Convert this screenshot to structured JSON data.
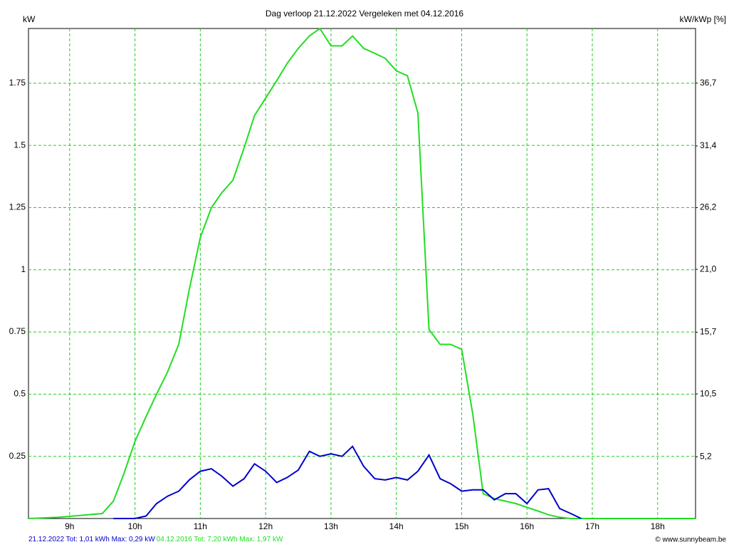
{
  "chart_data": {
    "type": "line",
    "title": "Dag  verloop 21.12.2022   Vergeleken met 04.12.2016",
    "y_label": "kW",
    "y2_label": "kW/kWp [%]",
    "credit": "© www.sunnybeam.be",
    "grid": true,
    "grid_color": "#22cc22",
    "xlim": [
      8.37,
      18.58
    ],
    "xticks": [
      {
        "value": 9,
        "label": "9h"
      },
      {
        "value": 10,
        "label": "10h"
      },
      {
        "value": 11,
        "label": "11h"
      },
      {
        "value": 12,
        "label": "12h"
      },
      {
        "value": 13,
        "label": "13h"
      },
      {
        "value": 14,
        "label": "14h"
      },
      {
        "value": 15,
        "label": "15h"
      },
      {
        "value": 16,
        "label": "16h"
      },
      {
        "value": 17,
        "label": "17h"
      },
      {
        "value": 18,
        "label": "18h"
      }
    ],
    "ylim": [
      0,
      1.97
    ],
    "yticks": [
      0.25,
      0.5,
      0.75,
      1,
      1.25,
      1.5,
      1.75
    ],
    "y2lim": [
      0,
      41.3
    ],
    "y2ticks": [
      {
        "value": 5.2,
        "label": "5,2"
      },
      {
        "value": 10.5,
        "label": "10,5"
      },
      {
        "value": 15.7,
        "label": "15,7"
      },
      {
        "value": 21.0,
        "label": "21,0"
      },
      {
        "value": 26.2,
        "label": "26,2"
      },
      {
        "value": 31.4,
        "label": "31,4"
      },
      {
        "value": 36.7,
        "label": "36,7"
      }
    ],
    "series": [
      {
        "name": "21.12.2022 Tot: 1,01 kWh Max: 0,29 kW",
        "color": "#0000cc",
        "x": [
          9.67,
          10.0,
          10.17,
          10.33,
          10.5,
          10.67,
          10.83,
          11.0,
          11.17,
          11.33,
          11.5,
          11.67,
          11.83,
          12.0,
          12.17,
          12.33,
          12.5,
          12.67,
          12.83,
          13.0,
          13.17,
          13.33,
          13.5,
          13.67,
          13.83,
          14.0,
          14.17,
          14.33,
          14.5,
          14.67,
          14.83,
          15.0,
          15.17,
          15.33,
          15.5,
          15.67,
          15.83,
          16.0,
          16.17,
          16.33,
          16.5,
          16.67,
          16.83
        ],
        "values": [
          0,
          0,
          0.01,
          0.06,
          0.09,
          0.11,
          0.155,
          0.19,
          0.2,
          0.17,
          0.13,
          0.16,
          0.22,
          0.19,
          0.145,
          0.165,
          0.195,
          0.27,
          0.25,
          0.26,
          0.25,
          0.29,
          0.21,
          0.16,
          0.155,
          0.165,
          0.155,
          0.19,
          0.255,
          0.16,
          0.14,
          0.11,
          0.115,
          0.115,
          0.075,
          0.1,
          0.1,
          0.06,
          0.115,
          0.12,
          0.04,
          0.02,
          0
        ]
      },
      {
        "name": "04.12.2016 Tot: 7,20 kWh Max: 1,97 kW",
        "color": "#22dd22",
        "x": [
          8.37,
          8.83,
          9.5,
          9.67,
          9.83,
          10.0,
          10.17,
          10.33,
          10.5,
          10.67,
          10.83,
          11.0,
          11.17,
          11.33,
          11.5,
          11.67,
          11.83,
          12.0,
          12.17,
          12.33,
          12.5,
          12.67,
          12.83,
          13.0,
          13.17,
          13.33,
          13.5,
          13.67,
          13.83,
          14.0,
          14.17,
          14.33,
          14.5,
          14.67,
          14.83,
          15.0,
          15.17,
          15.33,
          15.5,
          15.67,
          15.83,
          16.0,
          16.17,
          16.33,
          16.5,
          16.67,
          18.58
        ],
        "values": [
          0,
          0.005,
          0.02,
          0.07,
          0.18,
          0.31,
          0.41,
          0.5,
          0.59,
          0.7,
          0.92,
          1.13,
          1.25,
          1.31,
          1.36,
          1.49,
          1.62,
          1.69,
          1.76,
          1.83,
          1.89,
          1.94,
          1.97,
          1.9,
          1.9,
          1.94,
          1.89,
          1.87,
          1.85,
          1.8,
          1.78,
          1.63,
          0.76,
          0.7,
          0.7,
          0.68,
          0.42,
          0.1,
          0.08,
          0.07,
          0.06,
          0.045,
          0.03,
          0.015,
          0.005,
          0,
          0
        ]
      }
    ]
  }
}
